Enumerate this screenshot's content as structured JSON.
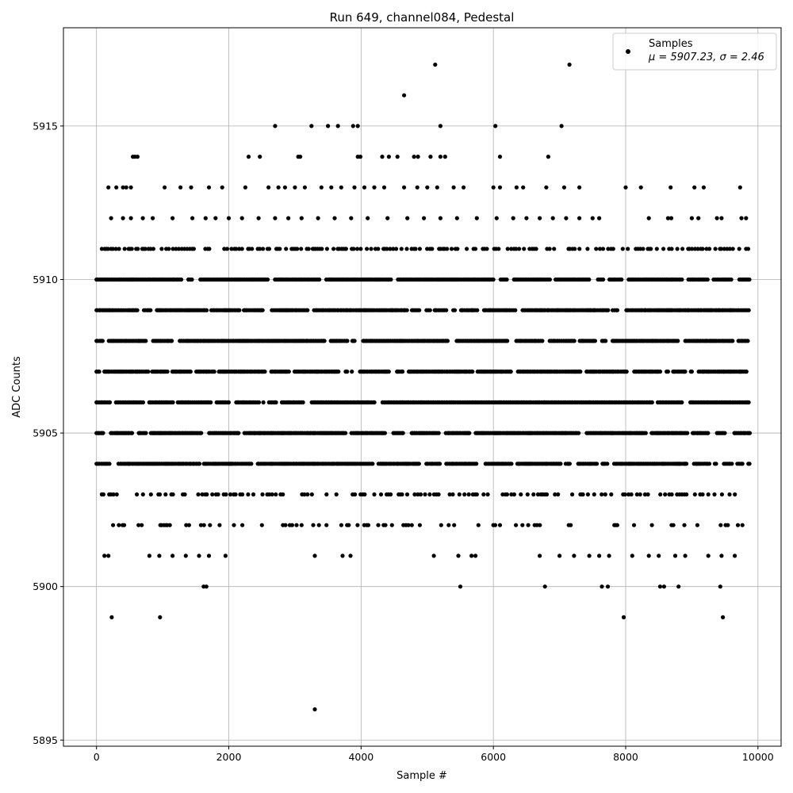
{
  "chart_data": {
    "type": "scatter",
    "title": "Run 649, channel084, Pedestal",
    "xlabel": "Sample #",
    "ylabel": "ADC Counts",
    "xlim": [
      -500,
      10350
    ],
    "ylim": [
      5894.8,
      5918.2
    ],
    "xticks": [
      0,
      2000,
      4000,
      6000,
      8000,
      10000
    ],
    "xtick_labels": [
      "0",
      "2000",
      "4000",
      "6000",
      "8000",
      "10000"
    ],
    "yticks": [
      5895,
      5900,
      5905,
      5910,
      5915
    ],
    "ytick_labels": [
      "5895",
      "5900",
      "5905",
      "5910",
      "5915"
    ],
    "grid": true,
    "legend": {
      "position": "top-right",
      "entries": [
        {
          "label": "Samples",
          "stats": "μ = 5907.23, σ = 2.46"
        }
      ]
    },
    "series": [
      {
        "name": "Samples",
        "color": "#000000",
        "n_samples": 10000,
        "mean": 5907.23,
        "std": 2.46,
        "bands": [
          {
            "y": 5910,
            "x_range": [
              0,
              9880
            ]
          },
          {
            "y": 5909,
            "x_range": [
              0,
              9880
            ]
          },
          {
            "y": 5908,
            "x_range": [
              0,
              9880
            ]
          },
          {
            "y": 5907,
            "x_range": [
              0,
              9880
            ]
          },
          {
            "y": 5906,
            "x_range": [
              0,
              9880
            ]
          },
          {
            "y": 5905,
            "x_range": [
              0,
              9880
            ]
          },
          {
            "y": 5904,
            "x_range": [
              0,
              9880
            ]
          }
        ],
        "sparse_points": [
          [
            5120,
            5917
          ],
          [
            7150,
            5917
          ],
          [
            4650,
            5916
          ],
          [
            2700,
            5915
          ],
          [
            3250,
            5915
          ],
          [
            3500,
            5915
          ],
          [
            3650,
            5915
          ],
          [
            3880,
            5915
          ],
          [
            3950,
            5915
          ],
          [
            5200,
            5915
          ],
          [
            6030,
            5915
          ],
          [
            7030,
            5915
          ],
          [
            550,
            5914
          ],
          [
            580,
            5914
          ],
          [
            620,
            5914
          ],
          [
            2300,
            5914
          ],
          [
            2470,
            5914
          ],
          [
            3050,
            5914
          ],
          [
            3080,
            5914
          ],
          [
            3950,
            5914
          ],
          [
            3990,
            5914
          ],
          [
            4320,
            5914
          ],
          [
            4420,
            5914
          ],
          [
            4550,
            5914
          ],
          [
            4800,
            5914
          ],
          [
            4860,
            5914
          ],
          [
            5050,
            5914
          ],
          [
            5200,
            5914
          ],
          [
            5270,
            5914
          ],
          [
            6100,
            5914
          ],
          [
            6830,
            5914
          ],
          [
            180,
            5913
          ],
          [
            300,
            5913
          ],
          [
            400,
            5913
          ],
          [
            450,
            5913
          ],
          [
            520,
            5913
          ],
          [
            1030,
            5913
          ],
          [
            1270,
            5913
          ],
          [
            1430,
            5913
          ],
          [
            1700,
            5913
          ],
          [
            1900,
            5913
          ],
          [
            2250,
            5913
          ],
          [
            2600,
            5913
          ],
          [
            2750,
            5913
          ],
          [
            2850,
            5913
          ],
          [
            3000,
            5913
          ],
          [
            3150,
            5913
          ],
          [
            3400,
            5913
          ],
          [
            3550,
            5913
          ],
          [
            3700,
            5913
          ],
          [
            3900,
            5913
          ],
          [
            4050,
            5913
          ],
          [
            4200,
            5913
          ],
          [
            4350,
            5913
          ],
          [
            4650,
            5913
          ],
          [
            4850,
            5913
          ],
          [
            5000,
            5913
          ],
          [
            5150,
            5913
          ],
          [
            5400,
            5913
          ],
          [
            5550,
            5913
          ],
          [
            6000,
            5913
          ],
          [
            6100,
            5913
          ],
          [
            6350,
            5913
          ],
          [
            6450,
            5913
          ],
          [
            6800,
            5913
          ],
          [
            7070,
            5913
          ],
          [
            7300,
            5913
          ],
          [
            8000,
            5913
          ],
          [
            8230,
            5913
          ],
          [
            8680,
            5913
          ],
          [
            9040,
            5913
          ],
          [
            9180,
            5913
          ],
          [
            9730,
            5913
          ],
          [
            220,
            5912
          ],
          [
            400,
            5912
          ],
          [
            520,
            5912
          ],
          [
            700,
            5912
          ],
          [
            850,
            5912
          ],
          [
            1150,
            5912
          ],
          [
            1450,
            5912
          ],
          [
            1650,
            5912
          ],
          [
            1800,
            5912
          ],
          [
            2000,
            5912
          ],
          [
            2200,
            5912
          ],
          [
            2450,
            5912
          ],
          [
            2700,
            5912
          ],
          [
            2900,
            5912
          ],
          [
            3100,
            5912
          ],
          [
            3350,
            5912
          ],
          [
            3600,
            5912
          ],
          [
            3850,
            5912
          ],
          [
            4100,
            5912
          ],
          [
            4400,
            5912
          ],
          [
            4700,
            5912
          ],
          [
            4950,
            5912
          ],
          [
            5200,
            5912
          ],
          [
            5450,
            5912
          ],
          [
            5750,
            5912
          ],
          [
            6050,
            5912
          ],
          [
            6300,
            5912
          ],
          [
            6500,
            5912
          ],
          [
            6700,
            5912
          ],
          [
            6900,
            5912
          ],
          [
            7100,
            5912
          ],
          [
            7300,
            5912
          ],
          [
            7500,
            5912
          ],
          [
            7600,
            5912
          ],
          [
            8350,
            5912
          ],
          [
            8640,
            5912
          ],
          [
            8690,
            5912
          ],
          [
            9000,
            5912
          ],
          [
            9100,
            5912
          ],
          [
            9380,
            5912
          ],
          [
            9450,
            5912
          ],
          [
            9750,
            5912
          ],
          [
            9820,
            5912
          ],
          [
            120,
            5901
          ],
          [
            180,
            5901
          ],
          [
            800,
            5901
          ],
          [
            950,
            5901
          ],
          [
            1150,
            5901
          ],
          [
            1350,
            5901
          ],
          [
            1550,
            5901
          ],
          [
            1700,
            5901
          ],
          [
            1950,
            5901
          ],
          [
            3300,
            5901
          ],
          [
            3720,
            5901
          ],
          [
            3840,
            5901
          ],
          [
            5100,
            5901
          ],
          [
            5470,
            5901
          ],
          [
            5670,
            5901
          ],
          [
            5730,
            5901
          ],
          [
            6700,
            5901
          ],
          [
            7000,
            5901
          ],
          [
            7220,
            5901
          ],
          [
            7450,
            5901
          ],
          [
            7600,
            5901
          ],
          [
            7750,
            5901
          ],
          [
            8100,
            5901
          ],
          [
            8350,
            5901
          ],
          [
            8500,
            5901
          ],
          [
            8750,
            5901
          ],
          [
            8900,
            5901
          ],
          [
            9250,
            5901
          ],
          [
            9450,
            5901
          ],
          [
            9650,
            5901
          ],
          [
            1620,
            5900
          ],
          [
            1660,
            5900
          ],
          [
            5500,
            5900
          ],
          [
            6780,
            5900
          ],
          [
            7640,
            5900
          ],
          [
            7730,
            5900
          ],
          [
            8520,
            5900
          ],
          [
            8580,
            5900
          ],
          [
            8800,
            5900
          ],
          [
            9430,
            5900
          ],
          [
            230,
            5899
          ],
          [
            960,
            5899
          ],
          [
            7970,
            5899
          ],
          [
            9470,
            5899
          ],
          [
            3300,
            5896
          ]
        ]
      }
    ]
  }
}
